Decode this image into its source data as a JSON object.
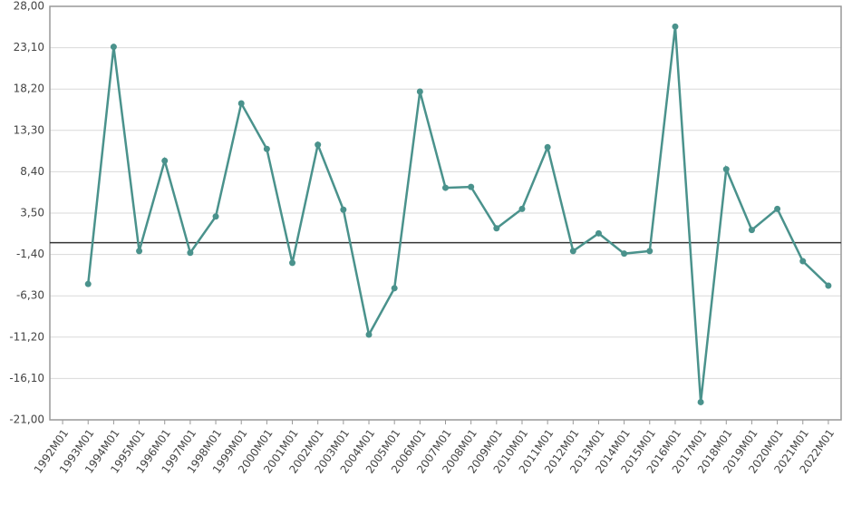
{
  "chart_data": {
    "type": "line",
    "categories": [
      "1992M01",
      "1993M01",
      "1994M01",
      "1995M01",
      "1996M01",
      "1997M01",
      "1998M01",
      "1999M01",
      "2000M01",
      "2001M01",
      "2002M01",
      "2003M01",
      "2004M01",
      "2005M01",
      "2006M01",
      "2007M01",
      "2008M01",
      "2009M01",
      "2010M01",
      "2011M01",
      "2012M01",
      "2013M01",
      "2014M01",
      "2015M01",
      "2016M01",
      "2017M01",
      "2018M01",
      "2019M01",
      "2020M01",
      "2021M01",
      "2022M01"
    ],
    "values": [
      null,
      -4.9,
      23.2,
      -1.0,
      9.7,
      -1.2,
      3.1,
      16.5,
      11.1,
      -2.4,
      11.6,
      3.9,
      -10.9,
      -5.4,
      17.9,
      6.5,
      6.6,
      1.7,
      4.0,
      11.3,
      -1.0,
      1.1,
      -1.3,
      -1.0,
      25.6,
      -18.9,
      8.7,
      1.5,
      4.0,
      -2.2,
      -5.1
    ],
    "color": "#4a928c",
    "ylim": [
      -21,
      28
    ],
    "yticks": [
      {
        "value": 28,
        "label": "28,00"
      },
      {
        "value": 23.1,
        "label": "23,10"
      },
      {
        "value": 18.2,
        "label": "18,20"
      },
      {
        "value": 13.3,
        "label": "13,30"
      },
      {
        "value": 8.4,
        "label": "8,40"
      },
      {
        "value": 3.5,
        "label": "3,50"
      },
      {
        "value": -1.4,
        "label": "-1,40"
      },
      {
        "value": -6.3,
        "label": "-6,30"
      },
      {
        "value": -11.2,
        "label": "-11,20"
      },
      {
        "value": -16.1,
        "label": "-16,10"
      },
      {
        "value": -21,
        "label": "-21,00"
      }
    ],
    "grid": true
  }
}
